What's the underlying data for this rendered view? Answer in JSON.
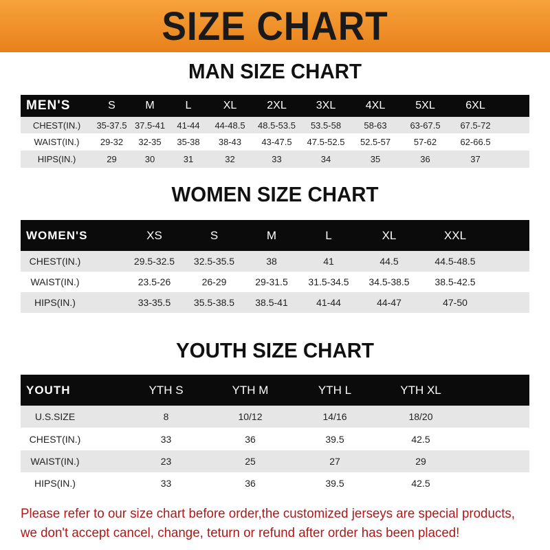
{
  "banner_title": "SIZE CHART",
  "tables": [
    {
      "id": "men",
      "title": "MAN SIZE CHART",
      "header": "MEN'S",
      "sizes": [
        "S",
        "M",
        "L",
        "XL",
        "2XL",
        "3XL",
        "4XL",
        "5XL",
        "6XL"
      ],
      "rows": [
        {
          "label": "CHEST(IN.)",
          "values": [
            "35-37.5",
            "37.5-41",
            "41-44",
            "44-48.5",
            "48.5-53.5",
            "53.5-58",
            "58-63",
            "63-67.5",
            "67.5-72"
          ]
        },
        {
          "label": "WAIST(IN.)",
          "values": [
            "29-32",
            "32-35",
            "35-38",
            "38-43",
            "43-47.5",
            "47.5-52.5",
            "52.5-57",
            "57-62",
            "62-66.5"
          ]
        },
        {
          "label": "HIPS(IN.)",
          "values": [
            "29",
            "30",
            "31",
            "32",
            "33",
            "34",
            "35",
            "36",
            "37"
          ]
        }
      ]
    },
    {
      "id": "women",
      "title": "WOMEN SIZE CHART",
      "header": "WOMEN'S",
      "sizes": [
        "XS",
        "S",
        "M",
        "L",
        "XL",
        "XXL"
      ],
      "rows": [
        {
          "label": "CHEST(IN.)",
          "values": [
            "29.5-32.5",
            "32.5-35.5",
            "38",
            "41",
            "44.5",
            "44.5-48.5"
          ]
        },
        {
          "label": "WAIST(IN.)",
          "values": [
            "23.5-26",
            "26-29",
            "29-31.5",
            "31.5-34.5",
            "34.5-38.5",
            "38.5-42.5"
          ]
        },
        {
          "label": "HIPS(IN.)",
          "values": [
            "33-35.5",
            "35.5-38.5",
            "38.5-41",
            "41-44",
            "44-47",
            "47-50"
          ]
        }
      ]
    },
    {
      "id": "youth",
      "title": "YOUTH SIZE CHART",
      "header": "YOUTH",
      "sizes": [
        "YTH S",
        "YTH M",
        "YTH L",
        "YTH XL"
      ],
      "rows": [
        {
          "label": "U.S.SIZE",
          "values": [
            "8",
            "10/12",
            "14/16",
            "18/20"
          ]
        },
        {
          "label": "CHEST(IN.)",
          "values": [
            "33",
            "36",
            "39.5",
            "42.5"
          ]
        },
        {
          "label": "WAIST(IN.)",
          "values": [
            "23",
            "25",
            "27",
            "29"
          ]
        },
        {
          "label": "HIPS(IN.)",
          "values": [
            "33",
            "36",
            "39.5",
            "42.5"
          ]
        }
      ]
    }
  ],
  "notice": [
    "Please refer to our size chart before order,the customized jerseys are special products,",
    "we don't accept cancel, change, teturn or refund after order has been placed!"
  ],
  "colors": {
    "banner": "#ee8a22",
    "header_row": "#0b0b0b",
    "stripe": "#e6e6e6",
    "notice": "#b01818"
  }
}
